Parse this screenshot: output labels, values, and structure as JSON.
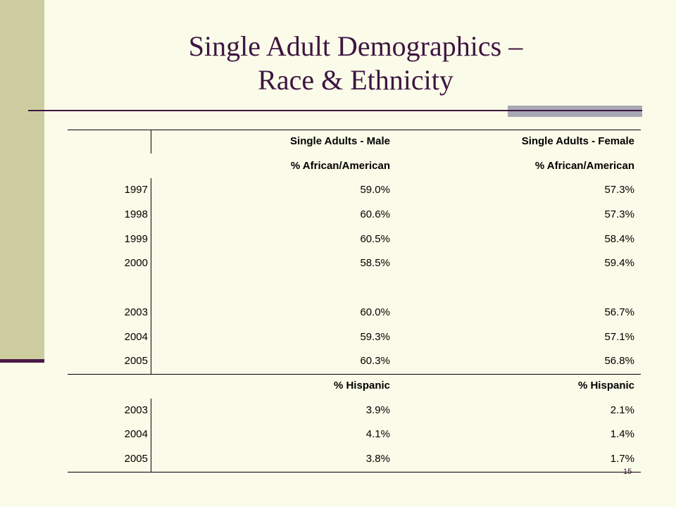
{
  "slide": {
    "title_line1": "Single Adult Demographics –",
    "title_line2": "Race & Ethnicity",
    "page_number": "15"
  },
  "table": {
    "header": {
      "label": "",
      "male": "Single Adults - Male",
      "female": "Single Adults - Female"
    },
    "section_african_american": {
      "male": "% African/American",
      "female": "% African/American"
    },
    "african_american_rows": [
      {
        "year": "1997",
        "male": "59.0%",
        "female": "57.3%"
      },
      {
        "year": "1998",
        "male": "60.6%",
        "female": "57.3%"
      },
      {
        "year": "1999",
        "male": "60.5%",
        "female": "58.4%"
      },
      {
        "year": "2000",
        "male": "58.5%",
        "female": "59.4%"
      },
      {
        "year": "",
        "male": "",
        "female": ""
      },
      {
        "year": "2003",
        "male": "60.0%",
        "female": "56.7%"
      },
      {
        "year": "2004",
        "male": "59.3%",
        "female": "57.1%"
      },
      {
        "year": "2005",
        "male": "60.3%",
        "female": "56.8%"
      }
    ],
    "section_hispanic": {
      "male": "% Hispanic",
      "female": "% Hispanic"
    },
    "hispanic_rows": [
      {
        "year": "2003",
        "male": "3.9%",
        "female": "2.1%"
      },
      {
        "year": "2004",
        "male": "4.1%",
        "female": "1.4%"
      },
      {
        "year": "2005",
        "male": "3.8%",
        "female": "1.7%"
      }
    ]
  }
}
